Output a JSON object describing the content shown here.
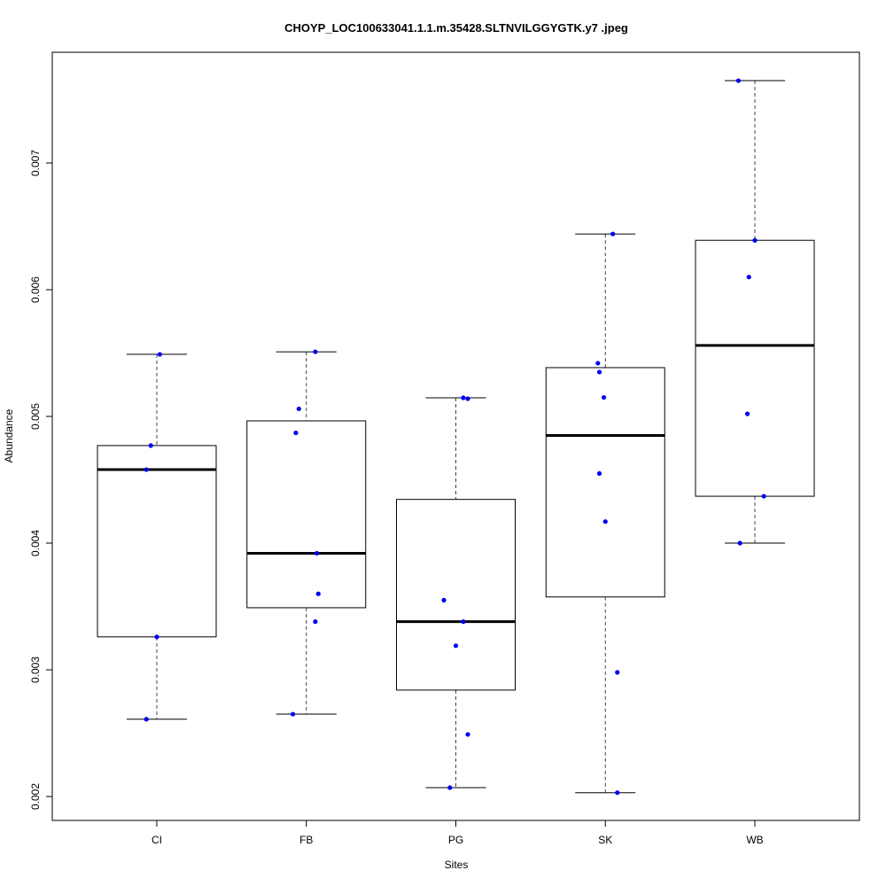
{
  "chart_data": {
    "type": "boxplot",
    "title": "CHOYP_LOC100633041.1.1.m.35428.SLTNVILGGYGTK.y7 .jpeg",
    "xlabel": "Sites",
    "ylabel": "Abundance",
    "ylim": [
      0.00195,
      0.0078
    ],
    "yticks": [
      "0.002",
      "0.003",
      "0.004",
      "0.005",
      "0.006",
      "0.007"
    ],
    "categories": [
      "CI",
      "FB",
      "PG",
      "SK",
      "WB"
    ],
    "box_stats": [
      {
        "min": 0.00261,
        "q1": 0.00326,
        "median": 0.00458,
        "q3": 0.00477,
        "max": 0.00549
      },
      {
        "min": 0.00265,
        "q1": 0.00349,
        "median": 0.00392,
        "q3": 0.004965,
        "max": 0.00551
      },
      {
        "min": 0.00207,
        "q1": 0.00284,
        "median": 0.00338,
        "q3": 0.004345,
        "max": 0.005147
      },
      {
        "min": 0.00203,
        "q1": 0.003575,
        "median": 0.00485,
        "q3": 0.005385,
        "max": 0.00644
      },
      {
        "min": 0.004,
        "q1": 0.00437,
        "median": 0.00556,
        "q3": 0.00639,
        "max": 0.00765
      }
    ],
    "points": [
      [
        {
          "v": 0.00549,
          "j": 0.02
        },
        {
          "v": 0.00477,
          "j": -0.04
        },
        {
          "v": 0.00458,
          "j": -0.07
        },
        {
          "v": 0.00326,
          "j": 0.0
        },
        {
          "v": 0.00261,
          "j": -0.07
        }
      ],
      [
        {
          "v": 0.00551,
          "j": 0.06
        },
        {
          "v": 0.00506,
          "j": -0.05
        },
        {
          "v": 0.00487,
          "j": -0.07
        },
        {
          "v": 0.00392,
          "j": 0.07
        },
        {
          "v": 0.0036,
          "j": 0.08
        },
        {
          "v": 0.00338,
          "j": 0.06
        },
        {
          "v": 0.00265,
          "j": -0.09
        }
      ],
      [
        {
          "v": 0.005147,
          "j": 0.05
        },
        {
          "v": 0.00514,
          "j": 0.08
        },
        {
          "v": 0.00355,
          "j": -0.08
        },
        {
          "v": 0.00338,
          "j": 0.05
        },
        {
          "v": 0.00319,
          "j": 0.0
        },
        {
          "v": 0.00249,
          "j": 0.08
        },
        {
          "v": 0.00207,
          "j": -0.04
        }
      ],
      [
        {
          "v": 0.00644,
          "j": 0.05
        },
        {
          "v": 0.00542,
          "j": -0.05
        },
        {
          "v": 0.00535,
          "j": -0.04
        },
        {
          "v": 0.00515,
          "j": -0.01
        },
        {
          "v": 0.00455,
          "j": -0.04
        },
        {
          "v": 0.00417,
          "j": 0.0
        },
        {
          "v": 0.00298,
          "j": 0.08
        },
        {
          "v": 0.00203,
          "j": 0.08
        }
      ],
      [
        {
          "v": 0.00765,
          "j": -0.11
        },
        {
          "v": 0.00639,
          "j": 0.0
        },
        {
          "v": 0.0061,
          "j": -0.04
        },
        {
          "v": 0.00502,
          "j": -0.05
        },
        {
          "v": 0.00437,
          "j": 0.06
        },
        {
          "v": 0.004,
          "j": -0.1
        }
      ]
    ],
    "point_color": "#0000ee",
    "grid": false
  }
}
